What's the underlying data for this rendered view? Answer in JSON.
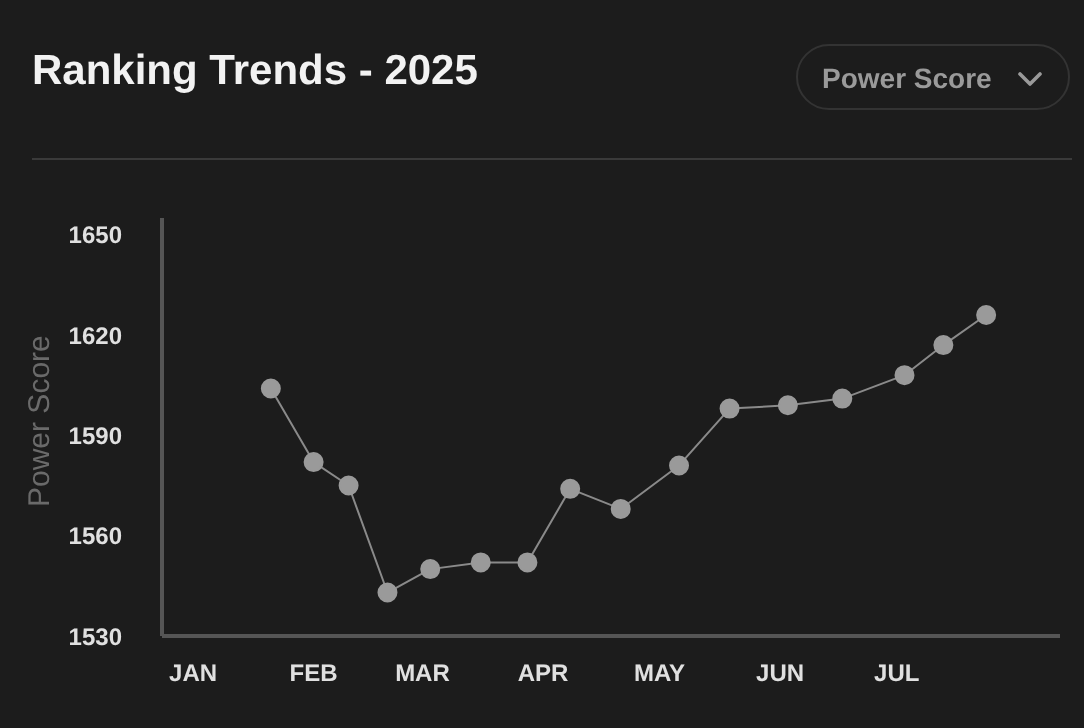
{
  "chart_data": {
    "type": "line",
    "title": "Ranking Trends - 2025",
    "ylabel": "Power Score",
    "annotations": [
      "Power Score"
    ],
    "x": [
      "2025-01-21",
      "2025-02-01",
      "2025-02-10",
      "2025-02-20",
      "2025-03-03",
      "2025-03-16",
      "2025-03-28",
      "2025-04-08",
      "2025-04-21",
      "2025-05-06",
      "2025-05-19",
      "2025-06-03",
      "2025-06-17",
      "2025-07-03",
      "2025-07-13",
      "2025-07-24"
    ],
    "series": [
      {
        "color": "#9a9a9a",
        "values": [
          1604,
          1582,
          1575,
          1543,
          1550,
          1552,
          1552,
          1574,
          1568,
          1581,
          1598,
          1599,
          1601,
          1608,
          1617,
          1626
        ]
      }
    ],
    "xlim": [
      "2024-12-24",
      "2025-08-12"
    ],
    "xticks": [
      {
        "value": "2025-01-01",
        "label": "JAN"
      },
      {
        "value": "2025-02-01",
        "label": "FEB"
      },
      {
        "value": "2025-03-01",
        "label": "MAR"
      },
      {
        "value": "2025-04-01",
        "label": "APR"
      },
      {
        "value": "2025-05-01",
        "label": "MAY"
      },
      {
        "value": "2025-06-01",
        "label": "JUN"
      },
      {
        "value": "2025-07-01",
        "label": "JUL"
      }
    ],
    "ylim": [
      1530,
      1655
    ],
    "yticks": [
      1530,
      1560,
      1590,
      1620,
      1650
    ],
    "grid": false,
    "legend": false,
    "marker": "circle",
    "line_style": "solid"
  }
}
